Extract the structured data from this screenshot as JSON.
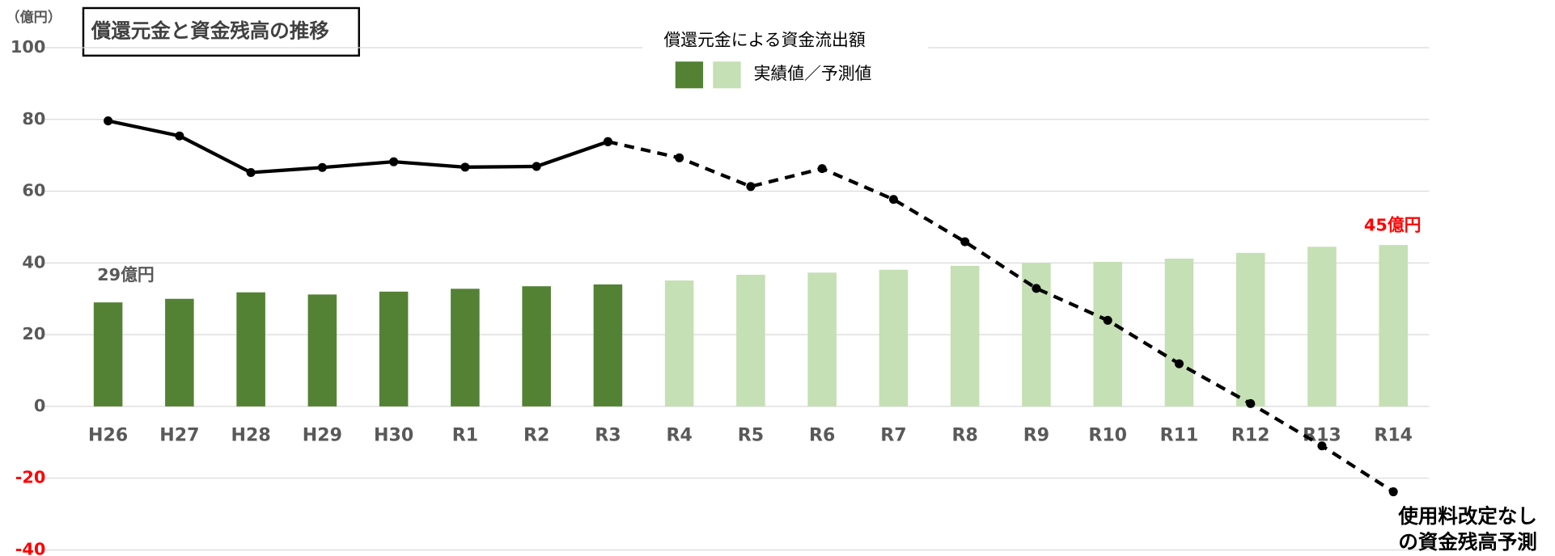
{
  "chart_data": {
    "type": "bar",
    "title": "償還元金と資金残高の推移",
    "unit_label": "（億円）",
    "categories": [
      "H26",
      "H27",
      "H28",
      "H29",
      "H30",
      "R1",
      "R2",
      "R3",
      "R4",
      "R5",
      "R6",
      "R7",
      "R8",
      "R9",
      "R10",
      "R11",
      "R12",
      "R13",
      "R14"
    ],
    "series": [
      {
        "kind": "bar",
        "color": "#548235",
        "values": [
          29,
          30,
          31.8,
          31.2,
          32,
          32.8,
          33.5,
          34,
          null,
          null,
          null,
          null,
          null,
          null,
          null,
          null,
          null,
          null,
          null
        ]
      },
      {
        "kind": "bar",
        "color": "#c5e0b4",
        "values": [
          null,
          null,
          null,
          null,
          null,
          null,
          null,
          null,
          35.1,
          36.7,
          37.3,
          38.1,
          39.2,
          40,
          40.3,
          41.2,
          42.8,
          44.5,
          45
        ]
      },
      {
        "kind": "line",
        "color": "#000000",
        "dash": false,
        "values": [
          79.6,
          75.4,
          65.2,
          66.6,
          68.2,
          66.7,
          66.9,
          73.8,
          null,
          null,
          null,
          null,
          null,
          null,
          null,
          null,
          null,
          null,
          null
        ]
      },
      {
        "kind": "line",
        "color": "#000000",
        "dash": true,
        "values": [
          null,
          null,
          null,
          null,
          null,
          null,
          null,
          73.8,
          69.3,
          61.3,
          66.3,
          57.7,
          45.9,
          32.9,
          24,
          11.9,
          0.8,
          -11,
          -23.8
        ]
      }
    ],
    "legend": {
      "title": "償還元金による資金流出額",
      "label": "実績値／予測値"
    },
    "ylim": [
      -40,
      100
    ],
    "yticks": [
      100,
      80,
      60,
      40,
      20,
      0,
      -20,
      -40
    ],
    "grid": true,
    "negative_tick_color": "#ff0000",
    "annotations": [
      {
        "text": "29億円",
        "color": "#595959"
      },
      {
        "text": "45億円",
        "color": "#ff0000"
      },
      {
        "lines": [
          "使用料改定なし",
          "の資金残高予測"
        ],
        "color": "#000000"
      }
    ]
  }
}
